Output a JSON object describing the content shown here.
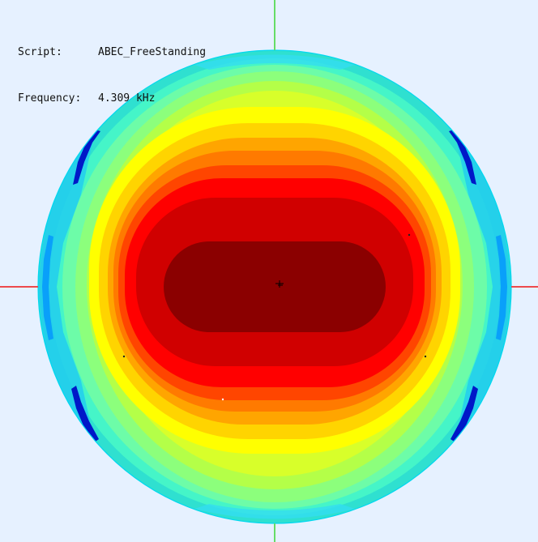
{
  "info": {
    "script_label": "Script:",
    "script_value": "ABEC_FreeStanding",
    "frequency_label": "Frequency:",
    "frequency_value": "4.309 kHz"
  },
  "colors": {
    "background": "#e6f1ff",
    "vertical_axis": "#66dd66",
    "horizontal_axis": "#ee3333",
    "disk_edge": "#2fe0d0",
    "contour_scale": [
      "#8b0000",
      "#c00000",
      "#ff0000",
      "#ff4000",
      "#ff7000",
      "#ffa500",
      "#ffd400",
      "#ffff00",
      "#c8ff30",
      "#80ff80",
      "#40ffc0",
      "#00e0ff",
      "#0080ff",
      "#0010c0"
    ]
  },
  "icons": {
    "center_marker": "crosshair-marker"
  }
}
